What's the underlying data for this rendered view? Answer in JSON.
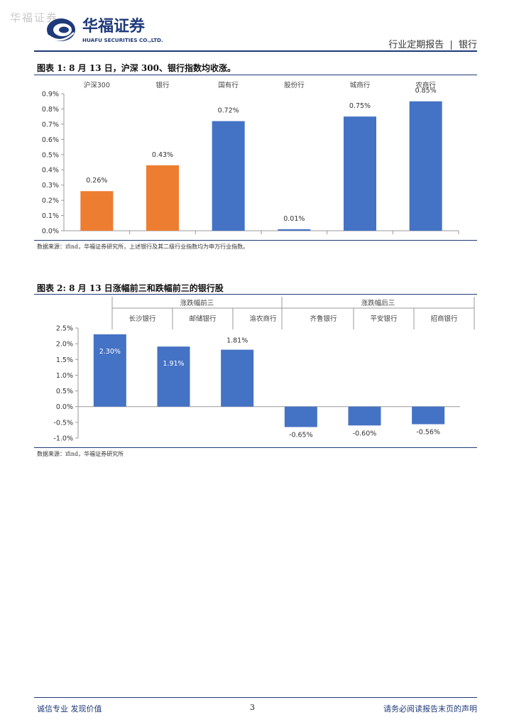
{
  "header": {
    "watermark": "华福证券",
    "brand_cn": "华福证券",
    "brand_en": "HUAFU SECURITIES CO.,LTD.",
    "report_type": "行业定期报告",
    "separator": "|",
    "sector": "银行"
  },
  "figure1": {
    "title": "图表 1:  8 月 13 日，沪深 300、银行指数均收涨。",
    "source": "数据来源：ifind，华福证券研究所，上述银行及其二级行业指数均为申万行业指数。"
  },
  "figure2": {
    "title": "图表 2:  8 月 13 日涨幅前三和跌幅前三的银行股",
    "source": "数据来源：ifind，华福证券研究所"
  },
  "chart_data": [
    {
      "type": "bar",
      "categories": [
        "沪深300",
        "银行",
        "国有行",
        "股份行",
        "城商行",
        "农商行"
      ],
      "values": [
        0.26,
        0.43,
        0.72,
        0.01,
        0.75,
        0.85
      ],
      "value_labels": [
        "0.26%",
        "0.43%",
        "0.72%",
        "0.01%",
        "0.75%",
        "0.85%"
      ],
      "colors": [
        "#ed7d31",
        "#ed7d31",
        "#4472c4",
        "#4472c4",
        "#4472c4",
        "#4472c4"
      ],
      "yticks": [
        "0.0%",
        "0.1%",
        "0.2%",
        "0.3%",
        "0.4%",
        "0.5%",
        "0.6%",
        "0.7%",
        "0.8%",
        "0.9%"
      ],
      "ylim": [
        0,
        0.9
      ],
      "grid": false
    },
    {
      "type": "bar",
      "groups": [
        "涨跌幅前三",
        "涨跌幅后三"
      ],
      "categories": [
        "长沙银行",
        "邮储银行",
        "渝农商行",
        "齐鲁银行",
        "平安银行",
        "招商银行"
      ],
      "values": [
        2.3,
        1.91,
        1.81,
        -0.65,
        -0.6,
        -0.56
      ],
      "value_labels": [
        "2.30%",
        "1.91%",
        "1.81%",
        "-0.65%",
        "-0.60%",
        "-0.56%"
      ],
      "colors": [
        "#4472c4",
        "#4472c4",
        "#4472c4",
        "#4472c4",
        "#4472c4",
        "#4472c4"
      ],
      "yticks": [
        "-1.0%",
        "-0.5%",
        "0.0%",
        "0.5%",
        "1.0%",
        "1.5%",
        "2.0%",
        "2.5%"
      ],
      "ylim": [
        -1.0,
        2.5
      ],
      "grid": false
    }
  ],
  "footer": {
    "left": "诚信专业  发现价值",
    "page": "3",
    "right": "请务必阅读报告末页的声明"
  }
}
